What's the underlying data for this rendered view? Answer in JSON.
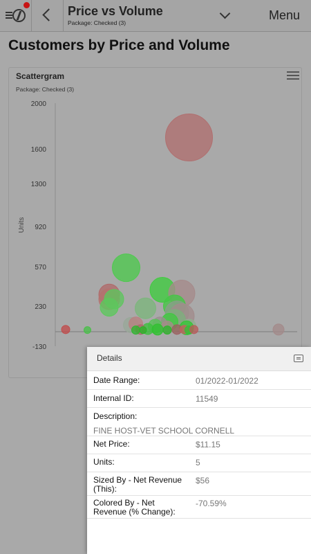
{
  "header": {
    "title": "Price vs Volume",
    "subtitle": "Package: Checked (3)",
    "menu_label": "Menu",
    "icons": {
      "app": "app-logo-icon",
      "back": "chevron-left-icon",
      "dropdown": "chevron-down-icon"
    },
    "notification_color": "#c81414"
  },
  "page_title": "Customers by Price and Volume",
  "card": {
    "title": "Scattergram",
    "subtitle": "Package: Checked (3)",
    "menu_icon": "hamburger-icon"
  },
  "chart_data": {
    "type": "scatter",
    "ylabel": "Units",
    "yticks": [
      2000,
      1600,
      1300,
      920,
      570,
      230,
      -130
    ],
    "ylim": [
      -130,
      2000
    ],
    "grid": false,
    "points": [
      {
        "x": 0.53,
        "y": 1700,
        "size": 34,
        "color": "#b06f6f"
      },
      {
        "x": 0.27,
        "y": 560,
        "size": 20,
        "color": "#4ec94e"
      },
      {
        "x": 0.42,
        "y": 370,
        "size": 18,
        "color": "#3fcc3f"
      },
      {
        "x": 0.5,
        "y": 340,
        "size": 19,
        "color": "#a58a8a"
      },
      {
        "x": 0.2,
        "y": 330,
        "size": 15,
        "color": "#b06a6a"
      },
      {
        "x": 0.2,
        "y": 290,
        "size": 15,
        "color": "#b4726e"
      },
      {
        "x": 0.22,
        "y": 290,
        "size": 14,
        "color": "#5ec55e"
      },
      {
        "x": 0.2,
        "y": 220,
        "size": 13,
        "color": "#5cc85c"
      },
      {
        "x": 0.47,
        "y": 230,
        "size": 16,
        "color": "#44c744"
      },
      {
        "x": 0.35,
        "y": 210,
        "size": 15,
        "color": "#7cb67c"
      },
      {
        "x": 0.48,
        "y": 170,
        "size": 17,
        "color": "#8a9d8a"
      },
      {
        "x": 0.5,
        "y": 140,
        "size": 18,
        "color": "#a28c8c"
      },
      {
        "x": 0.47,
        "y": 100,
        "size": 16,
        "color": "#7dae7d"
      },
      {
        "x": 0.45,
        "y": 90,
        "size": 12,
        "color": "#40c840"
      },
      {
        "x": 0.41,
        "y": 70,
        "size": 10,
        "color": "#9a8f8f"
      },
      {
        "x": 0.39,
        "y": 50,
        "size": 10,
        "color": "#55c455"
      },
      {
        "x": 0.29,
        "y": 60,
        "size": 11,
        "color": "#99a899"
      },
      {
        "x": 0.31,
        "y": 70,
        "size": 10,
        "color": "#b98080"
      },
      {
        "x": 0.44,
        "y": 40,
        "size": 9,
        "color": "#a68a8a"
      },
      {
        "x": 0.53,
        "y": 50,
        "size": 10,
        "color": "#8fb08f"
      },
      {
        "x": 0.52,
        "y": 35,
        "size": 10,
        "color": "#33c533"
      },
      {
        "x": 0.36,
        "y": 25,
        "size": 8,
        "color": "#3fbf3f"
      },
      {
        "x": 0.4,
        "y": 20,
        "size": 8,
        "color": "#30c030"
      },
      {
        "x": 0.33,
        "y": 20,
        "size": 7,
        "color": "#a86b6b"
      },
      {
        "x": 0.48,
        "y": 20,
        "size": 7,
        "color": "#9b6060"
      },
      {
        "x": 0.51,
        "y": 20,
        "size": 6,
        "color": "#c36060"
      },
      {
        "x": 0.31,
        "y": 15,
        "size": 6,
        "color": "#2fb52f"
      },
      {
        "x": 0.34,
        "y": 15,
        "size": 5,
        "color": "#27b827"
      },
      {
        "x": 0.44,
        "y": 15,
        "size": 6,
        "color": "#2db52d"
      },
      {
        "x": 0.53,
        "y": 15,
        "size": 6,
        "color": "#36bf36"
      },
      {
        "x": 0.55,
        "y": 20,
        "size": 6,
        "color": "#b85b5b"
      },
      {
        "x": 0.02,
        "y": 20,
        "size": 6,
        "color": "#c04c4c"
      },
      {
        "x": 0.11,
        "y": 15,
        "size": 5,
        "color": "#4abf4a"
      },
      {
        "x": 0.9,
        "y": 20,
        "size": 8,
        "color": "#a38a8a"
      }
    ]
  },
  "details": {
    "title": "Details",
    "comment_icon": "comment-icon",
    "rows": [
      {
        "label": "Date Range:",
        "value": "01/2022-01/2022"
      },
      {
        "label": "Internal ID:",
        "value": "11549"
      },
      {
        "label": "Description:",
        "value": "FINE HOST-VET SCHOOL CORNELL"
      },
      {
        "label": "Net Price:",
        "value": "$11.15"
      },
      {
        "label": "Units:",
        "value": "5"
      },
      {
        "label": "Sized By - Net Revenue (This):",
        "value": "$56"
      },
      {
        "label": "Colored By - Net Revenue (% Change):",
        "value": "-70.59%"
      }
    ]
  }
}
